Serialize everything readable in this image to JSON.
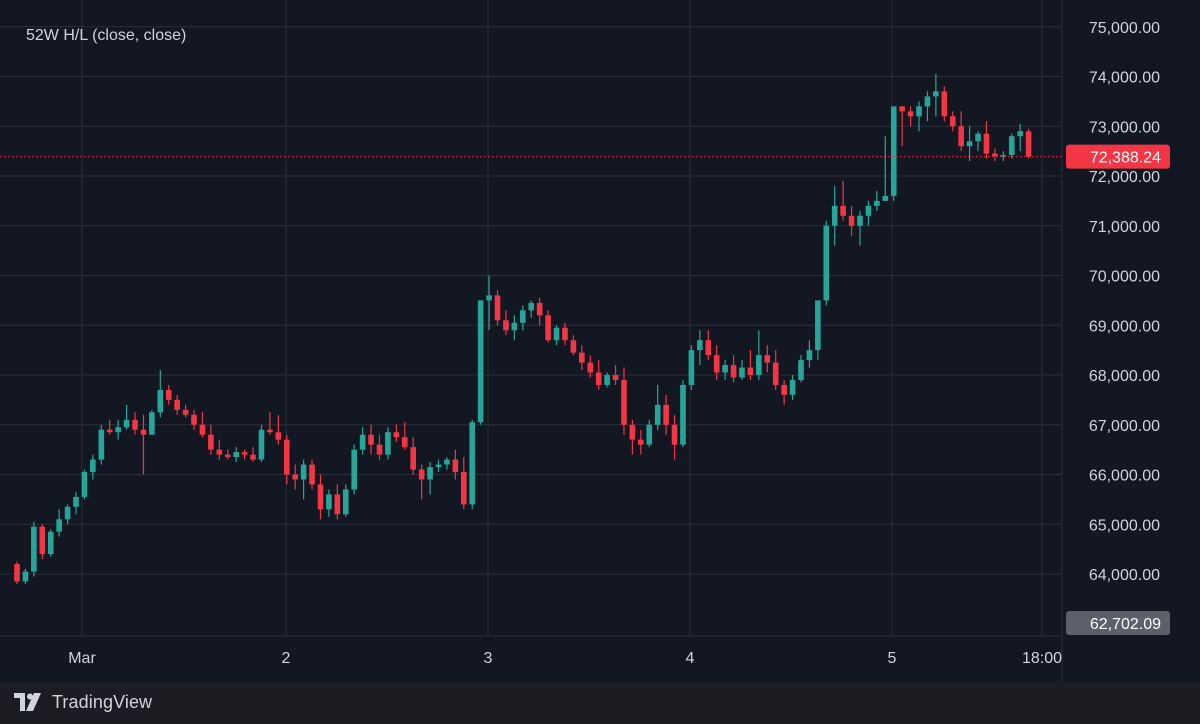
{
  "chart_data": {
    "type": "candlestick",
    "legend_text": "52W H/L (close, close)",
    "y_ticks": [
      64000,
      65000,
      66000,
      67000,
      68000,
      69000,
      70000,
      71000,
      72000,
      73000,
      74000,
      75000
    ],
    "y_tick_labels": [
      "64,000.00",
      "65,000.00",
      "66,000.00",
      "67,000.00",
      "68,000.00",
      "69,000.00",
      "70,000.00",
      "71,000.00",
      "72,000.00",
      "73,000.00",
      "74,000.00",
      "75,000.00"
    ],
    "x_tick_labels": [
      "Mar",
      "2",
      "3",
      "4",
      "5",
      "18:00"
    ],
    "current_price": 72388.24,
    "current_price_label": "72,388.24",
    "low_marker": 62702.09,
    "low_marker_label": "62,702.09",
    "colors": {
      "up": "#26a69a",
      "down": "#f23645",
      "grid": "#2a2e39",
      "text": "#d1d4dc"
    },
    "candles": [
      [
        64200,
        64250,
        63800,
        63850
      ],
      [
        63850,
        64100,
        63800,
        64050
      ],
      [
        64050,
        65050,
        63950,
        64950
      ],
      [
        64950,
        65000,
        64300,
        64400
      ],
      [
        64400,
        64900,
        64350,
        64850
      ],
      [
        64850,
        65300,
        64750,
        65100
      ],
      [
        65100,
        65400,
        65000,
        65350
      ],
      [
        65350,
        65650,
        65200,
        65550
      ],
      [
        65550,
        66100,
        65500,
        66050
      ],
      [
        66050,
        66400,
        65900,
        66300
      ],
      [
        66300,
        67000,
        66200,
        66900
      ],
      [
        66900,
        67100,
        66800,
        66850
      ],
      [
        66850,
        67100,
        66700,
        66950
      ],
      [
        66950,
        67400,
        66900,
        67100
      ],
      [
        67100,
        67250,
        66800,
        66900
      ],
      [
        66900,
        67200,
        66000,
        66800
      ],
      [
        66800,
        67300,
        66800,
        67250
      ],
      [
        67250,
        68100,
        67150,
        67700
      ],
      [
        67700,
        67800,
        67400,
        67500
      ],
      [
        67500,
        67600,
        67200,
        67300
      ],
      [
        67300,
        67400,
        67150,
        67200
      ],
      [
        67200,
        67300,
        66900,
        67000
      ],
      [
        67000,
        67250,
        66750,
        66800
      ],
      [
        66800,
        67000,
        66400,
        66500
      ],
      [
        66500,
        66700,
        66300,
        66400
      ],
      [
        66400,
        66500,
        66300,
        66350
      ],
      [
        66350,
        66550,
        66250,
        66450
      ],
      [
        66450,
        66500,
        66300,
        66400
      ],
      [
        66400,
        66550,
        66250,
        66300
      ],
      [
        66300,
        67000,
        66250,
        66900
      ],
      [
        66900,
        67250,
        66800,
        66850
      ],
      [
        66850,
        67200,
        66600,
        66700
      ],
      [
        66700,
        66800,
        65800,
        66000
      ],
      [
        66000,
        66200,
        65700,
        65900
      ],
      [
        65900,
        66300,
        65500,
        66200
      ],
      [
        66200,
        66300,
        65700,
        65800
      ],
      [
        65800,
        66000,
        65100,
        65300
      ],
      [
        65300,
        65700,
        65150,
        65600
      ],
      [
        65600,
        65800,
        65100,
        65200
      ],
      [
        65200,
        65800,
        65150,
        65700
      ],
      [
        65700,
        66600,
        65600,
        66500
      ],
      [
        66500,
        66950,
        66400,
        66800
      ],
      [
        66800,
        67000,
        66400,
        66600
      ],
      [
        66600,
        66800,
        66300,
        66400
      ],
      [
        66400,
        66950,
        66300,
        66850
      ],
      [
        66850,
        67000,
        66650,
        66750
      ],
      [
        66750,
        67050,
        66500,
        66550
      ],
      [
        66550,
        66750,
        66000,
        66100
      ],
      [
        66100,
        66200,
        65500,
        65900
      ],
      [
        65900,
        66250,
        65600,
        66150
      ],
      [
        66150,
        66300,
        66050,
        66200
      ],
      [
        66200,
        66350,
        66100,
        66300
      ],
      [
        66300,
        66500,
        65900,
        66050
      ],
      [
        66050,
        66350,
        65300,
        65400
      ],
      [
        65400,
        67100,
        65300,
        67050
      ],
      [
        67050,
        69500,
        67000,
        69500
      ],
      [
        69500,
        70000,
        68900,
        69600
      ],
      [
        69600,
        69700,
        69000,
        69100
      ],
      [
        69100,
        69300,
        68800,
        68900
      ],
      [
        68900,
        69200,
        68700,
        69050
      ],
      [
        69050,
        69400,
        68900,
        69300
      ],
      [
        69300,
        69500,
        69150,
        69450
      ],
      [
        69450,
        69550,
        69000,
        69200
      ],
      [
        69200,
        69300,
        68650,
        68700
      ],
      [
        68700,
        69000,
        68600,
        68950
      ],
      [
        68950,
        69050,
        68600,
        68700
      ],
      [
        68700,
        68800,
        68400,
        68450
      ],
      [
        68450,
        68600,
        68100,
        68250
      ],
      [
        68250,
        68400,
        67950,
        68050
      ],
      [
        68050,
        68300,
        67700,
        67800
      ],
      [
        67800,
        68050,
        67750,
        68000
      ],
      [
        68000,
        68200,
        67800,
        67900
      ],
      [
        67900,
        68150,
        66800,
        67000
      ],
      [
        67000,
        67100,
        66400,
        66700
      ],
      [
        66700,
        66900,
        66400,
        66600
      ],
      [
        66600,
        67100,
        66550,
        67000
      ],
      [
        67000,
        67800,
        66900,
        67400
      ],
      [
        67400,
        67600,
        66800,
        67000
      ],
      [
        67000,
        67200,
        66300,
        66600
      ],
      [
        66600,
        67900,
        66550,
        67800
      ],
      [
        67800,
        68600,
        67700,
        68500
      ],
      [
        68500,
        68900,
        68200,
        68700
      ],
      [
        68700,
        68900,
        68300,
        68400
      ],
      [
        68400,
        68600,
        67900,
        68050
      ],
      [
        68050,
        68300,
        67900,
        68200
      ],
      [
        68200,
        68400,
        67850,
        67950
      ],
      [
        67950,
        68300,
        67900,
        68150
      ],
      [
        68150,
        68500,
        67900,
        68000
      ],
      [
        68000,
        68900,
        67900,
        68400
      ],
      [
        68400,
        68600,
        68050,
        68250
      ],
      [
        68250,
        68500,
        67700,
        67800
      ],
      [
        67800,
        67900,
        67400,
        67600
      ],
      [
        67600,
        68000,
        67500,
        67900
      ],
      [
        67900,
        68400,
        67850,
        68300
      ],
      [
        68300,
        68700,
        68150,
        68500
      ],
      [
        68500,
        69500,
        68300,
        69500
      ],
      [
        69500,
        71100,
        69400,
        71000
      ],
      [
        71000,
        71800,
        70600,
        71400
      ],
      [
        71400,
        71900,
        71100,
        71200
      ],
      [
        71200,
        71400,
        70800,
        71000
      ],
      [
        71000,
        71300,
        70600,
        71200
      ],
      [
        71200,
        71500,
        71000,
        71400
      ],
      [
        71400,
        71700,
        71300,
        71500
      ],
      [
        71500,
        72800,
        71500,
        71600
      ],
      [
        71600,
        73400,
        71500,
        73400
      ],
      [
        73400,
        73400,
        72600,
        73300
      ],
      [
        73300,
        73400,
        73000,
        73200
      ],
      [
        73200,
        73500,
        72900,
        73400
      ],
      [
        73400,
        73700,
        73100,
        73600
      ],
      [
        73600,
        74050,
        73200,
        73700
      ],
      [
        73700,
        73800,
        73100,
        73200
      ],
      [
        73200,
        73300,
        72900,
        73000
      ],
      [
        73000,
        73300,
        72500,
        72600
      ],
      [
        72600,
        73000,
        72300,
        72700
      ],
      [
        72700,
        72900,
        72500,
        72850
      ],
      [
        72850,
        73100,
        72350,
        72450
      ],
      [
        72450,
        72550,
        72300,
        72400
      ],
      [
        72400,
        72500,
        72300,
        72420
      ],
      [
        72420,
        72850,
        72350,
        72800
      ],
      [
        72800,
        73050,
        72500,
        72900
      ],
      [
        72900,
        72950,
        72350,
        72388.24
      ]
    ]
  },
  "brand": {
    "name": "TradingView",
    "logo_icon": "tradingview-logo-icon"
  }
}
